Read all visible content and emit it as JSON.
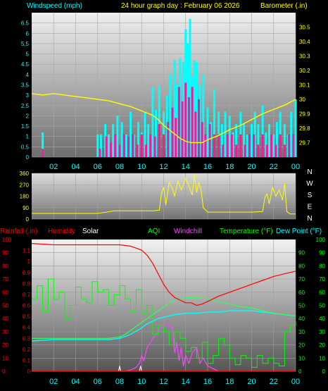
{
  "colors": {
    "wind_axis": "#00ffff",
    "baro_axis": "#ffff00",
    "wind_speed": "#00ffff",
    "wind_gust": "#ff1493",
    "barometer": "#ffff00",
    "direction": "#ffff00",
    "rain_axis": "#ff0000",
    "humidity": "#ff0000",
    "solar": "#ffffff",
    "aqi": "#00ff00",
    "windchill": "#ff44ff",
    "temperature": "#00ff00",
    "temp_line": "#30ff60",
    "dewpoint": "#00ffff",
    "compass": "#ffffff"
  },
  "chart_data": [
    {
      "type": "line",
      "name": "wind-barometer",
      "title": "24 hour graph day : February 06 2026",
      "ylabel_left": "Windspeed (mph)",
      "ylabel_right": "Barometer (.in)",
      "x_tick_labels": [
        "02",
        "04",
        "06",
        "08",
        "10",
        "12",
        "14",
        "16",
        "18",
        "20",
        "22",
        "00"
      ],
      "xlim": [
        0,
        24
      ],
      "ylim_left": [
        0,
        7
      ],
      "ylim_right": [
        29.6,
        30.6
      ],
      "y_ticks_left": [
        "0",
        "0.5",
        "1",
        "1.5",
        "2",
        "2.5",
        "3",
        "3.5",
        "4",
        "4.5",
        "5",
        "5.5",
        "6",
        "6.5"
      ],
      "y_ticks_right": [
        "29.7",
        "29.8",
        "29.9",
        "30",
        "30.1",
        "30.2",
        "30.3",
        "30.4",
        "30.5"
      ],
      "grid": true,
      "series": [
        {
          "key": "barometer",
          "axis": "right",
          "x": [
            0,
            1,
            2,
            3,
            4,
            5,
            6,
            7,
            8,
            9,
            10,
            11,
            11.5,
            12,
            12.5,
            13,
            13.5,
            14,
            14.5,
            15,
            15.5,
            16,
            17,
            18,
            19,
            20,
            21,
            22,
            23,
            24
          ],
          "values": [
            30.04,
            30.03,
            30.04,
            30.03,
            30.02,
            30.01,
            30.0,
            29.99,
            29.97,
            29.95,
            29.92,
            29.89,
            29.86,
            29.82,
            29.79,
            29.76,
            29.73,
            29.71,
            29.7,
            29.7,
            29.7,
            29.72,
            29.75,
            29.79,
            29.82,
            29.86,
            29.9,
            29.93,
            29.96,
            30.0
          ]
        },
        {
          "key": "wind_speed",
          "axis": "left",
          "x": [
            1.0,
            6.0,
            6.3,
            6.7,
            7.0,
            7.4,
            7.8,
            8.2,
            8.6,
            9.0,
            9.3,
            9.7,
            10.0,
            10.3,
            10.6,
            11.0,
            11.3,
            11.6,
            12.0,
            12.3,
            12.6,
            13.0,
            13.2,
            13.5,
            13.8,
            14.0,
            14.2,
            14.4,
            14.6,
            14.8,
            15.0,
            15.3,
            15.6,
            16.0,
            16.3,
            16.6,
            17.0,
            17.3,
            17.6,
            18.0,
            18.3,
            18.6,
            19.0,
            19.3,
            19.6,
            20.0,
            20.3,
            20.6,
            21.0,
            21.3,
            21.6,
            22.0,
            22.3,
            22.6,
            23.0,
            23.3,
            23.6,
            24.0
          ],
          "values": [
            1.2,
            1.1,
            1.1,
            1.6,
            1.1,
            1.6,
            2.0,
            1.7,
            1.1,
            2.2,
            1.1,
            1.7,
            1.2,
            2.2,
            1.6,
            3.4,
            2.3,
            3.5,
            2.2,
            3.0,
            4.0,
            4.7,
            3.5,
            4.8,
            4.6,
            6.2,
            5.5,
            6.7,
            3.9,
            4.7,
            4.6,
            3.5,
            4.0,
            2.4,
            1.7,
            3.3,
            2.2,
            1.6,
            2.2,
            2.0,
            1.2,
            1.6,
            2.2,
            1.6,
            1.1,
            1.6,
            2.2,
            1.6,
            2.5,
            1.2,
            1.6,
            1.1,
            1.7,
            2.2,
            1.6,
            1.1,
            2.2,
            2.8
          ]
        },
        {
          "key": "wind_gust",
          "axis": "left",
          "x": [
            1.0,
            6.2,
            6.8,
            7.2,
            7.6,
            8.0,
            8.4,
            8.8,
            9.2,
            9.6,
            10.0,
            10.4,
            10.8,
            11.2,
            11.6,
            12.0,
            12.4,
            12.8,
            13.1,
            13.4,
            13.7,
            14.0,
            14.3,
            14.6,
            14.9,
            15.2,
            15.5,
            15.8,
            16.2,
            16.6,
            17.0,
            17.4,
            17.8,
            18.2,
            18.6,
            19.0,
            19.4,
            19.8,
            20.2,
            20.6,
            21.0,
            21.4,
            21.8,
            22.2,
            22.6,
            23.0,
            23.4,
            23.8
          ],
          "values": [
            0.4,
            0.4,
            1.0,
            0.7,
            1.1,
            0.6,
            1.1,
            1.0,
            1.1,
            0.6,
            1.1,
            0.6,
            1.1,
            1.0,
            1.6,
            1.1,
            1.7,
            2.4,
            1.9,
            3.4,
            2.7,
            3.6,
            2.9,
            3.4,
            2.2,
            2.8,
            1.7,
            1.1,
            1.6,
            1.1,
            1.1,
            0.6,
            1.1,
            1.1,
            0.6,
            1.1,
            0.6,
            1.1,
            1.1,
            0.6,
            1.1,
            0.6,
            1.1,
            0.6,
            1.1,
            0.6,
            1.1,
            1.1
          ]
        }
      ]
    },
    {
      "type": "line",
      "name": "wind-direction",
      "xlim": [
        0,
        24
      ],
      "ylim": [
        0,
        360
      ],
      "y_ticks": [
        "0",
        "90",
        "180",
        "270",
        "360"
      ],
      "right_labels": [
        "N",
        "W",
        "S",
        "E",
        "N"
      ],
      "grid": true,
      "series": [
        {
          "key": "direction",
          "x": [
            0,
            3,
            6,
            6.8,
            7.5,
            8,
            9,
            10,
            11,
            11.6,
            11.8,
            12.0,
            12.2,
            12.5,
            12.8,
            13.0,
            13.3,
            13.6,
            14.0,
            14.3,
            14.6,
            14.8,
            15.0,
            15.2,
            15.4,
            15.6,
            16.0,
            17,
            18,
            19,
            20,
            21,
            21.2,
            21.4,
            21.6,
            21.9,
            22.2,
            22.5,
            22.8,
            23.0,
            23.2,
            23.5,
            24
          ],
          "values": [
            45,
            45,
            45,
            55,
            65,
            65,
            65,
            65,
            65,
            70,
            200,
            250,
            110,
            290,
            240,
            180,
            300,
            230,
            320,
            260,
            190,
            350,
            210,
            290,
            230,
            90,
            55,
            55,
            55,
            55,
            55,
            60,
            170,
            200,
            120,
            250,
            180,
            230,
            150,
            280,
            60,
            40,
            40
          ]
        }
      ]
    },
    {
      "type": "line",
      "name": "rain-humidity-temperature",
      "ylabel_rain": "Rainfall (.in)",
      "label_humidity": "Humidity",
      "label_solar": "Solar",
      "label_aqi": "AQI",
      "label_windchill": "Windchill",
      "ylabel_temperature": "Temperature (°F)",
      "ylabel_dewpoint": "Dew Point (°F)",
      "x_tick_labels": [
        "02",
        "04",
        "06",
        "08",
        "10",
        "12",
        "14",
        "16",
        "18",
        "20",
        "22",
        "00"
      ],
      "xlim": [
        0,
        24
      ],
      "rain_ylim": [
        0,
        1.2
      ],
      "rain_ticks": [
        "0",
        "0.1",
        "0.2",
        "0.3",
        "0.4",
        "0.5",
        "0.6",
        "0.7",
        "0.8",
        "0.9",
        "1",
        "1.1"
      ],
      "humidity_ylim": [
        0,
        100
      ],
      "humidity_ticks": [
        "0",
        "10",
        "20",
        "30",
        "40",
        "50",
        "60",
        "70",
        "80",
        "90",
        "100"
      ],
      "temp_ylim": [
        0,
        100
      ],
      "temp_ticks": [
        "0",
        "10",
        "20",
        "30",
        "40",
        "50",
        "60",
        "70",
        "80",
        "90"
      ],
      "aqi_ticks": [
        "0",
        "10",
        "20",
        "30",
        "40",
        "50",
        "60",
        "70",
        "80",
        "90",
        "100"
      ],
      "grid": true,
      "series": [
        {
          "key": "humidity",
          "x": [
            0,
            2,
            4,
            6,
            7,
            8,
            9,
            10,
            10.5,
            11,
            11.5,
            12,
            12.5,
            13,
            13.5,
            14,
            14.5,
            15,
            15.5,
            16,
            17,
            18,
            19,
            20,
            21,
            22,
            23,
            24
          ],
          "values": [
            97,
            96,
            96,
            96,
            96,
            96,
            95,
            92,
            88,
            82,
            74,
            66,
            60,
            56,
            54,
            52,
            52,
            50,
            51,
            53,
            57,
            60,
            63,
            66,
            69,
            72,
            74,
            76
          ]
        },
        {
          "key": "temperature",
          "x": [
            0,
            2,
            4,
            6,
            7,
            8,
            8.5,
            9,
            9.5,
            10,
            10.5,
            11,
            11.5,
            12,
            12.5,
            13,
            13.5,
            14,
            15,
            16,
            17,
            18,
            19,
            20,
            21,
            22,
            23,
            24
          ],
          "values": [
            25,
            25,
            25,
            25,
            25,
            26,
            28,
            31,
            34,
            37,
            40,
            43,
            46,
            49,
            52,
            54,
            55,
            56,
            56,
            55,
            53,
            51,
            49,
            48,
            46,
            44,
            43,
            42
          ]
        },
        {
          "key": "dewpoint",
          "x": [
            0,
            2,
            4,
            6,
            7,
            8,
            9,
            10,
            10.5,
            11,
            11.5,
            12,
            13,
            14,
            15,
            16,
            17,
            18,
            19,
            20,
            21,
            22,
            23,
            24
          ],
          "values": [
            23,
            24,
            24,
            24,
            24,
            25,
            28,
            33,
            36,
            38,
            40,
            41,
            43,
            44,
            44,
            45,
            45,
            46,
            46,
            46,
            45,
            44,
            43,
            42
          ]
        },
        {
          "key": "windchill",
          "x": [
            8,
            8.5,
            9,
            9.5,
            9.8,
            10,
            10.2,
            10.5,
            10.8,
            11,
            11.3,
            11.6,
            12,
            12.4,
            12.8,
            13,
            13.2,
            13.4,
            13.6,
            13.8,
            14,
            14.3,
            14.6,
            15,
            15.3,
            15.6,
            16,
            16.5,
            17
          ],
          "values": [
            0,
            0,
            1,
            3,
            6,
            12,
            8,
            18,
            22,
            25,
            28,
            32,
            34,
            36,
            33,
            14,
            22,
            8,
            18,
            4,
            12,
            6,
            14,
            18,
            6,
            10,
            4,
            2,
            0
          ]
        },
        {
          "key": "aqi",
          "x": [
            0,
            0.5,
            1,
            1.5,
            2,
            2.5,
            3,
            3.5,
            4,
            4.5,
            5,
            5.5,
            6,
            6.5,
            7,
            7.5,
            8,
            8.5,
            9,
            9.5,
            10,
            10.5,
            11,
            11.5,
            12,
            12.5,
            13,
            13.5,
            14,
            14.5,
            15,
            15.5,
            16,
            16.5,
            17,
            17.5,
            18,
            18.5,
            19,
            19.5,
            20,
            20.5,
            21,
            21.5,
            22,
            22.5,
            23,
            23.5,
            24
          ],
          "values": [
            55,
            65,
            45,
            70,
            55,
            60,
            40,
            50,
            64,
            55,
            52,
            68,
            60,
            62,
            50,
            58,
            65,
            55,
            45,
            62,
            44,
            50,
            28,
            35,
            30,
            20,
            30,
            25,
            15,
            18,
            10,
            22,
            6,
            12,
            25,
            20,
            10,
            5,
            12,
            10,
            3,
            12,
            6,
            10,
            6,
            4,
            30,
            35,
            38
          ]
        },
        {
          "key": "solar",
          "x": [
            0,
            7.9,
            8.0,
            8.1,
            9.8,
            9.9,
            10.0,
            24
          ],
          "values": [
            0,
            0,
            4,
            0,
            0,
            4,
            0,
            0
          ]
        },
        {
          "key": "rain",
          "x": [
            0,
            24
          ],
          "values": [
            0,
            0
          ]
        }
      ]
    }
  ]
}
